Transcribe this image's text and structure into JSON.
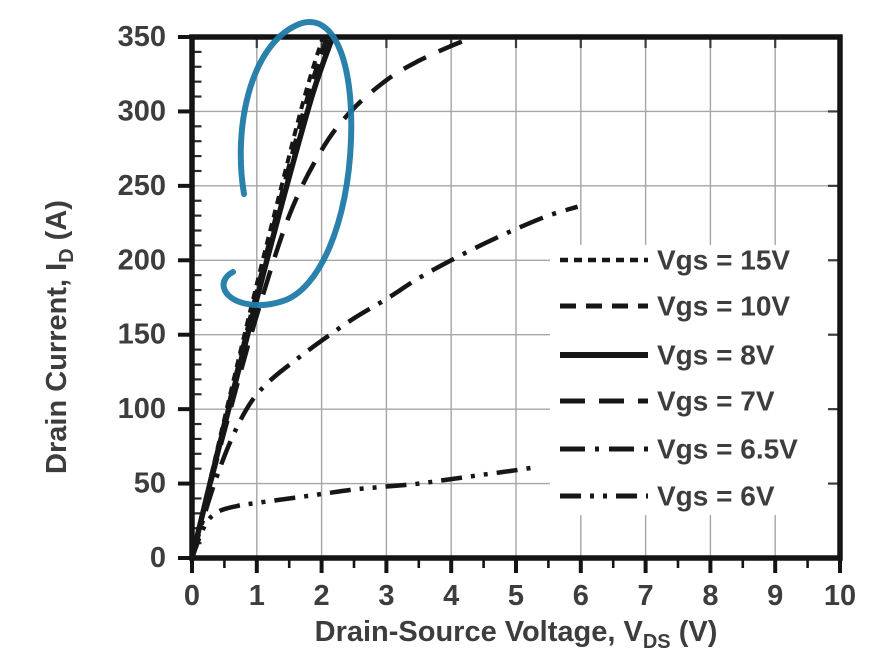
{
  "chart_data": {
    "type": "line",
    "title": "",
    "xlabel_parts": [
      {
        "t": "Drain-Source Voltage, V",
        "sub": false
      },
      {
        "t": "DS",
        "sub": true
      },
      {
        "t": " (V)",
        "sub": false
      }
    ],
    "ylabel_parts": [
      {
        "t": "Drain Current, I",
        "sub": false
      },
      {
        "t": "D",
        "sub": true
      },
      {
        "t": " (A)",
        "sub": false
      }
    ],
    "xlim": [
      0,
      10
    ],
    "ylim": [
      0,
      350
    ],
    "x_major_ticks": [
      0,
      1,
      2,
      3,
      4,
      5,
      6,
      7,
      8,
      9,
      10
    ],
    "x_minor_step": 0.5,
    "y_major_ticks": [
      0,
      50,
      100,
      150,
      200,
      250,
      300,
      350
    ],
    "y_minor_step": 10,
    "grid": true,
    "legend_position": "right-middle",
    "series": [
      {
        "name": "Vgs = 15V",
        "line_style": "fine-dash",
        "points": [
          [
            0,
            0
          ],
          [
            0.3,
            56
          ],
          [
            0.6,
            112
          ],
          [
            1.0,
            184
          ],
          [
            1.4,
            253
          ],
          [
            1.75,
            312
          ],
          [
            2.02,
            350
          ]
        ]
      },
      {
        "name": "Vgs = 10V",
        "line_style": "dash",
        "points": [
          [
            0,
            0
          ],
          [
            0.3,
            55
          ],
          [
            0.6,
            109
          ],
          [
            1.0,
            179
          ],
          [
            1.4,
            247
          ],
          [
            1.8,
            312
          ],
          [
            2.09,
            350
          ]
        ]
      },
      {
        "name": "Vgs = 8V",
        "line_style": "solid",
        "points": [
          [
            0,
            0
          ],
          [
            0.3,
            54
          ],
          [
            0.6,
            106
          ],
          [
            1.0,
            174
          ],
          [
            1.4,
            240
          ],
          [
            1.85,
            310
          ],
          [
            2.17,
            350
          ]
        ]
      },
      {
        "name": "Vgs = 7V",
        "line_style": "long-dash",
        "points": [
          [
            0,
            0
          ],
          [
            0.3,
            52
          ],
          [
            0.6,
            101
          ],
          [
            1.0,
            163
          ],
          [
            1.5,
            230
          ],
          [
            2.0,
            274
          ],
          [
            2.45,
            300
          ],
          [
            3.0,
            321
          ],
          [
            3.5,
            334
          ],
          [
            4.0,
            344
          ],
          [
            4.35,
            350
          ]
        ]
      },
      {
        "name": "Vgs = 6.5V",
        "line_style": "dash-dot",
        "points": [
          [
            0,
            0
          ],
          [
            0.3,
            44
          ],
          [
            0.6,
            79
          ],
          [
            0.9,
            104
          ],
          [
            1.2,
            119
          ],
          [
            1.6,
            133
          ],
          [
            2.0,
            146
          ],
          [
            2.5,
            161
          ],
          [
            3.0,
            174
          ],
          [
            3.5,
            188
          ],
          [
            4.0,
            200
          ],
          [
            4.5,
            211
          ],
          [
            5.0,
            221
          ],
          [
            5.5,
            230
          ],
          [
            5.95,
            236
          ]
        ]
      },
      {
        "name": "Vgs = 6V",
        "line_style": "dash-dot-dot",
        "points": [
          [
            0,
            0
          ],
          [
            0.2,
            22
          ],
          [
            0.4,
            31
          ],
          [
            0.7,
            35
          ],
          [
            1.0,
            37
          ],
          [
            1.5,
            40
          ],
          [
            2.0,
            43
          ],
          [
            2.5,
            46
          ],
          [
            3.0,
            48
          ],
          [
            3.5,
            50
          ],
          [
            4.0,
            53
          ],
          [
            4.5,
            56
          ],
          [
            5.0,
            59
          ],
          [
            5.3,
            61
          ]
        ]
      }
    ],
    "annotation": {
      "shape": "hand-drawn-ellipse",
      "color": "#1e7aa8"
    }
  },
  "colors": {
    "curve": "#161616",
    "frame": "#141414",
    "grid": "#a6a6a6",
    "text": "#3d3d3d",
    "annotation": "#1e7aa8",
    "background": "#ffffff"
  }
}
